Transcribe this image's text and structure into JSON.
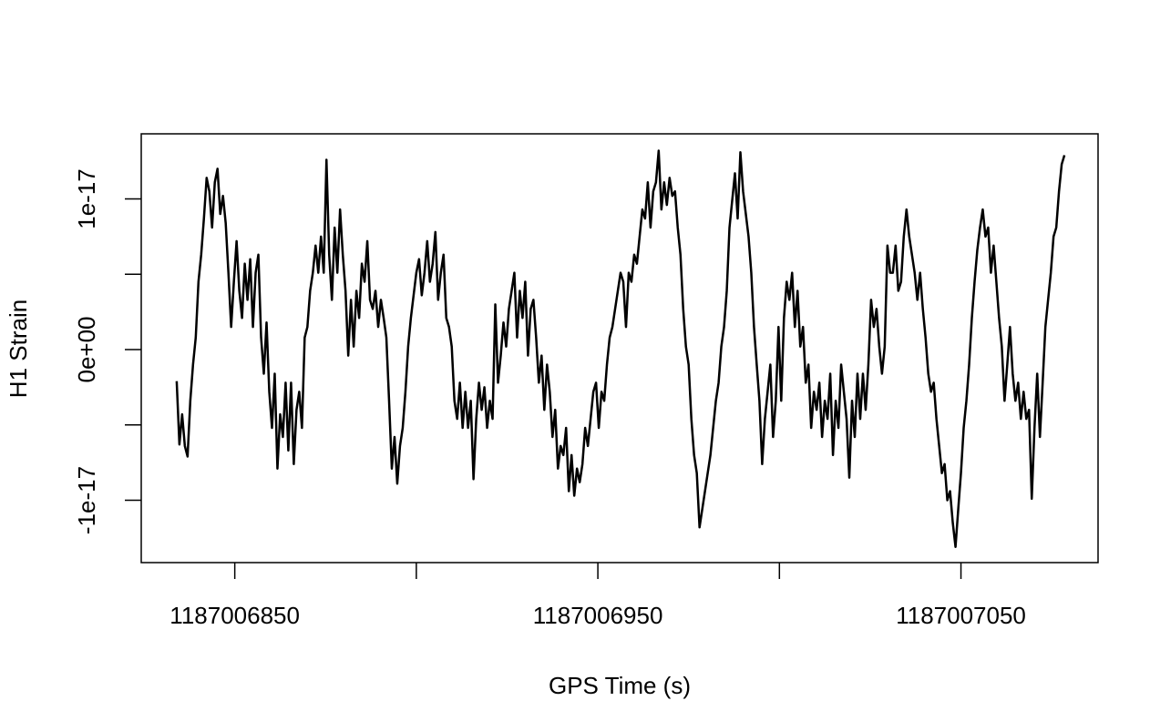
{
  "chart_data": {
    "type": "line",
    "xlabel": "GPS Time (s)",
    "ylabel": "H1 Strain",
    "color": "#000000",
    "xlim": [
      1187006824.24,
      1187007087.76
    ],
    "xticks": [
      1187006850,
      {
        "value": 1187006900,
        "label": null
      },
      1187006950,
      {
        "value": 1187007000,
        "label": null
      },
      1187007050
    ],
    "ylim": [
      -1.414e-17,
      1.432e-17
    ],
    "yticks": [
      -1e-17,
      {
        "value": -5e-18,
        "label": null
      },
      {
        "value": 0,
        "label": "0e+00"
      },
      {
        "value": 5e-18,
        "label": null
      },
      1e-17
    ],
    "x": [
      1187006834,
      1187006834.75,
      1187006835.5,
      1187006836.25,
      1187006837,
      1187006837.75,
      1187006838.5,
      1187006839.25,
      1187006840,
      1187006840.75,
      1187006841.5,
      1187006842.25,
      1187006843,
      1187006843.75,
      1187006844.5,
      1187006845.25,
      1187006846,
      1187006846.75,
      1187006847.5,
      1187006848.25,
      1187006849,
      1187006849.75,
      1187006850.5,
      1187006851.25,
      1187006852,
      1187006852.75,
      1187006853.5,
      1187006854.25,
      1187006855,
      1187006855.75,
      1187006856.5,
      1187006857.25,
      1187006858,
      1187006858.75,
      1187006859.5,
      1187006860.25,
      1187006861,
      1187006861.75,
      1187006862.5,
      1187006863.25,
      1187006864,
      1187006864.75,
      1187006865.5,
      1187006866.25,
      1187006867,
      1187006867.75,
      1187006868.5,
      1187006869.25,
      1187006870,
      1187006870.75,
      1187006871.5,
      1187006872.25,
      1187006873,
      1187006873.75,
      1187006874.5,
      1187006875.25,
      1187006876,
      1187006876.75,
      1187006877.5,
      1187006878.25,
      1187006879,
      1187006879.75,
      1187006880.5,
      1187006881.25,
      1187006882,
      1187006882.75,
      1187006883.5,
      1187006884.25,
      1187006885,
      1187006885.75,
      1187006886.5,
      1187006887.25,
      1187006888,
      1187006888.75,
      1187006889.5,
      1187006890.25,
      1187006891,
      1187006891.75,
      1187006892.5,
      1187006893.25,
      1187006894,
      1187006894.75,
      1187006895.5,
      1187006896.25,
      1187006897,
      1187006897.75,
      1187006898.5,
      1187006899.25,
      1187006900,
      1187006900.75,
      1187006901.5,
      1187006902.25,
      1187006903,
      1187006903.75,
      1187006904.5,
      1187006905.25,
      1187006906,
      1187006906.75,
      1187006907.5,
      1187006908.25,
      1187006909,
      1187006909.75,
      1187006910.5,
      1187006911.25,
      1187006912,
      1187006912.75,
      1187006913.5,
      1187006914.25,
      1187006915,
      1187006915.75,
      1187006916.5,
      1187006917.25,
      1187006918,
      1187006918.75,
      1187006919.5,
      1187006920.25,
      1187006921,
      1187006921.75,
      1187006922.5,
      1187006923.25,
      1187006924,
      1187006924.75,
      1187006925.5,
      1187006926.25,
      1187006927,
      1187006927.75,
      1187006928.5,
      1187006929.25,
      1187006930,
      1187006930.75,
      1187006931.5,
      1187006932.25,
      1187006933,
      1187006933.75,
      1187006934.5,
      1187006935.25,
      1187006936,
      1187006936.75,
      1187006937.5,
      1187006938.25,
      1187006939,
      1187006939.75,
      1187006940.5,
      1187006941.25,
      1187006942,
      1187006942.75,
      1187006943.5,
      1187006944.25,
      1187006945,
      1187006945.75,
      1187006946.5,
      1187006947.25,
      1187006948,
      1187006948.75,
      1187006949.5,
      1187006950.25,
      1187006951,
      1187006951.75,
      1187006952.5,
      1187006953.25,
      1187006954,
      1187006954.75,
      1187006955.5,
      1187006956.25,
      1187006957,
      1187006957.75,
      1187006958.5,
      1187006959.25,
      1187006960,
      1187006960.75,
      1187006961.5,
      1187006962.25,
      1187006963,
      1187006963.75,
      1187006964.5,
      1187006965.25,
      1187006966,
      1187006966.75,
      1187006967.5,
      1187006968.25,
      1187006969,
      1187006969.75,
      1187006970.5,
      1187006971.25,
      1187006972,
      1187006972.75,
      1187006973.5,
      1187006974.25,
      1187006975,
      1187006975.75,
      1187006976.5,
      1187006977.25,
      1187006978,
      1187006978.75,
      1187006979.5,
      1187006980.25,
      1187006981,
      1187006981.75,
      1187006982.5,
      1187006983.25,
      1187006984,
      1187006984.75,
      1187006985.5,
      1187006986.25,
      1187006987,
      1187006987.75,
      1187006988.5,
      1187006989.25,
      1187006990,
      1187006990.75,
      1187006991.5,
      1187006992.25,
      1187006993,
      1187006993.75,
      1187006994.5,
      1187006995.25,
      1187006996,
      1187006996.75,
      1187006997.5,
      1187006998.25,
      1187006999,
      1187006999.75,
      1187007000.5,
      1187007001.25,
      1187007002,
      1187007002.75,
      1187007003.5,
      1187007004.25,
      1187007005,
      1187007005.75,
      1187007006.5,
      1187007007.25,
      1187007008,
      1187007008.75,
      1187007009.5,
      1187007010.25,
      1187007011,
      1187007011.75,
      1187007012.5,
      1187007013.25,
      1187007014,
      1187007014.75,
      1187007015.5,
      1187007016.25,
      1187007017,
      1187007017.75,
      1187007018.5,
      1187007019.25,
      1187007020,
      1187007020.75,
      1187007021.5,
      1187007022.25,
      1187007023,
      1187007023.75,
      1187007024.5,
      1187007025.25,
      1187007026,
      1187007026.75,
      1187007027.5,
      1187007028.25,
      1187007029,
      1187007029.75,
      1187007030.5,
      1187007031.25,
      1187007032,
      1187007032.75,
      1187007033.5,
      1187007034.25,
      1187007035,
      1187007035.75,
      1187007036.5,
      1187007037.25,
      1187007038,
      1187007038.75,
      1187007039.5,
      1187007040.25,
      1187007041,
      1187007041.75,
      1187007042.5,
      1187007043.25,
      1187007044,
      1187007044.75,
      1187007045.5,
      1187007046.25,
      1187007047,
      1187007047.75,
      1187007048.5,
      1187007049.25,
      1187007050,
      1187007050.75,
      1187007051.5,
      1187007052.25,
      1187007053,
      1187007053.75,
      1187007054.5,
      1187007055.25,
      1187007056,
      1187007056.75,
      1187007057.5,
      1187007058.25,
      1187007059,
      1187007059.75,
      1187007060.5,
      1187007061.25,
      1187007062,
      1187007062.75,
      1187007063.5,
      1187007064.25,
      1187007065,
      1187007065.75,
      1187007066.5,
      1187007067.25,
      1187007068,
      1187007068.75,
      1187007069.5,
      1187007070.25,
      1187007071,
      1187007071.75,
      1187007072.5,
      1187007073.25,
      1187007074,
      1187007074.75,
      1187007075.5,
      1187007076.25,
      1187007077,
      1187007077.75,
      1187007078.5
    ],
    "values": [
      -2.1e-18,
      -6.3e-18,
      -4.3e-18,
      -6.4e-18,
      -7.1e-18,
      -3.4e-18,
      -1e-18,
      8e-19,
      4.5e-18,
      6.3e-18,
      8.7e-18,
      1.14e-17,
      1.05e-17,
      8.1e-18,
      1.11e-17,
      1.2e-17,
      9e-18,
      1.02e-17,
      8.4e-18,
      5.1e-18,
      1.5e-18,
      4.5e-18,
      7.2e-18,
      3.9e-18,
      2.1e-18,
      5.7e-18,
      3.3e-18,
      6e-18,
      1.5e-18,
      5.1e-18,
      6.3e-18,
      8e-19,
      -1.6e-18,
      1.8e-18,
      -2.8e-18,
      -5.2e-18,
      -1.6e-18,
      -7.9e-18,
      -4.3e-18,
      -5.8e-18,
      -2.2e-18,
      -6.7e-18,
      -2.2e-18,
      -7.6e-18,
      -4e-18,
      -2.8e-18,
      -5.2e-18,
      8e-19,
      1.5e-18,
      3.9e-18,
      5.1e-18,
      6.9e-18,
      5.1e-18,
      7.5e-18,
      5.1e-18,
      1.26e-17,
      6.3e-18,
      3.3e-18,
      8.1e-18,
      5.1e-18,
      9.3e-18,
      6.3e-18,
      3.9e-18,
      -4e-19,
      3.3e-18,
      2e-19,
      3.9e-18,
      2.1e-18,
      5.7e-18,
      4.5e-18,
      7.2e-18,
      3.3e-18,
      2.7e-18,
      3.9e-18,
      1.5e-18,
      3.3e-18,
      2.1e-18,
      8e-19,
      -3.4e-18,
      -7.9e-18,
      -5.8e-18,
      -8.9e-18,
      -6.4e-18,
      -5.2e-18,
      -2.8e-18,
      2e-19,
      2.1e-18,
      3.6e-18,
      5.1e-18,
      6e-18,
      3.6e-18,
      5.1e-18,
      7.2e-18,
      4.5e-18,
      5.7e-18,
      7.8e-18,
      3.3e-18,
      5.1e-18,
      6.3e-18,
      2.1e-18,
      1.5e-18,
      2e-19,
      -3.4e-18,
      -4.6e-18,
      -2.2e-18,
      -5.2e-18,
      -2.8e-18,
      -5.2e-18,
      -3.4e-18,
      -8.6e-18,
      -4.6e-18,
      -2.2e-18,
      -4e-18,
      -2.5e-18,
      -5.2e-18,
      -3.4e-18,
      -4.6e-18,
      3e-18,
      -2.2e-18,
      -4e-19,
      1.8e-18,
      2e-19,
      2.7e-18,
      3.9e-18,
      5.1e-18,
      8e-19,
      3.9e-18,
      2.1e-18,
      4.5e-18,
      -4e-19,
      2.7e-18,
      3.3e-18,
      8e-19,
      -2.2e-18,
      -4e-19,
      -4e-18,
      -1e-18,
      -2.8e-18,
      -5.8e-18,
      -4e-18,
      -7.9e-18,
      -6.4e-18,
      -7e-18,
      -5.2e-18,
      -9.4e-18,
      -7e-18,
      -9.7e-18,
      -7.9e-18,
      -8.8e-18,
      -7.6e-18,
      -5.2e-18,
      -6.4e-18,
      -4.6e-18,
      -2.8e-18,
      -2.2e-18,
      -5.2e-18,
      -2.8e-18,
      -3.4e-18,
      -1e-18,
      8e-19,
      1.5e-18,
      2.7e-18,
      3.9e-18,
      5.1e-18,
      4.5e-18,
      1.5e-18,
      5.1e-18,
      4.5e-18,
      6.3e-18,
      5.7e-18,
      7.5e-18,
      9.3e-18,
      8.7e-18,
      1.11e-17,
      8.1e-18,
      1.05e-17,
      1.11e-17,
      1.32e-17,
      9.3e-18,
      1.11e-17,
      9.6e-18,
      1.14e-17,
      1.02e-17,
      1.05e-17,
      8.1e-18,
      6.3e-18,
      2.7e-18,
      2e-19,
      -1e-18,
      -4.6e-18,
      -7e-18,
      -8.2e-18,
      -1.18e-17,
      -1.06e-17,
      -9.4e-18,
      -8.2e-18,
      -7e-18,
      -5.2e-18,
      -3.4e-18,
      -2.2e-18,
      2e-19,
      1.5e-18,
      3.9e-18,
      8.1e-18,
      9.9e-18,
      1.17e-17,
      8.7e-18,
      1.31e-17,
      1.05e-17,
      9e-18,
      7.5e-18,
      5.1e-18,
      1.5e-18,
      -1e-18,
      -3.4e-18,
      -7.6e-18,
      -4.6e-18,
      -2.8e-18,
      -1e-18,
      -5.8e-18,
      -3.4e-18,
      1.5e-18,
      -3.4e-18,
      2.1e-18,
      4.5e-18,
      3.3e-18,
      5.1e-18,
      1.5e-18,
      3.9e-18,
      2e-19,
      1.5e-18,
      -2.2e-18,
      -1e-18,
      -5.2e-18,
      -2.8e-18,
      -4e-18,
      -2.2e-18,
      -5.8e-18,
      -3.4e-18,
      -4.6e-18,
      -1.6e-18,
      -7e-18,
      -3.4e-18,
      -5.2e-18,
      -1e-18,
      -2.8e-18,
      -4.6e-18,
      -8.5e-18,
      -3.4e-18,
      -5.8e-18,
      -1.6e-18,
      -4.6e-18,
      -1.6e-18,
      -4e-18,
      -1e-18,
      3.3e-18,
      1.5e-18,
      2.7e-18,
      2e-19,
      -1.6e-18,
      2e-19,
      6.9e-18,
      5.1e-18,
      5.1e-18,
      6.9e-18,
      3.9e-18,
      4.5e-18,
      7.5e-18,
      9.3e-18,
      7.5e-18,
      6.3e-18,
      5.1e-18,
      3.3e-18,
      5.1e-18,
      2.7e-18,
      8e-19,
      -1.6e-18,
      -2.8e-18,
      -2.2e-18,
      -4.6e-18,
      -6.4e-18,
      -8.2e-18,
      -7.6e-18,
      -1e-17,
      -9.4e-18,
      -1.15e-17,
      -1.31e-17,
      -1.06e-17,
      -8.2e-18,
      -5.2e-18,
      -3.4e-18,
      -1e-18,
      2.1e-18,
      4.5e-18,
      6.6e-18,
      8.1e-18,
      9.3e-18,
      7.5e-18,
      8.1e-18,
      5.1e-18,
      6.9e-18,
      4.5e-18,
      2.1e-18,
      2e-19,
      -3.4e-18,
      -1e-18,
      1.5e-18,
      -1.6e-18,
      -3.4e-18,
      -2.2e-18,
      -4.6e-18,
      -2.8e-18,
      -4.6e-18,
      -4e-18,
      -9.9e-18,
      -5.2e-18,
      -1.6e-18,
      -5.8e-18,
      -2.2e-18,
      1.5e-18,
      3.3e-18,
      5.1e-18,
      7.5e-18,
      8.1e-18,
      1.05e-17,
      1.23e-17,
      1.29e-17
    ]
  }
}
